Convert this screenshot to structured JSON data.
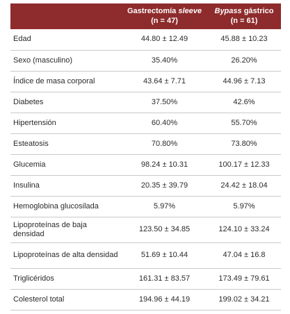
{
  "table": {
    "headers": [
      {
        "text_before": "Gastrectomía ",
        "text_italic": "sleeve",
        "text_after": "",
        "n": "(n = 47)"
      },
      {
        "text_before": "",
        "text_italic": "Bypass",
        "text_after": " gástrico",
        "n": "(n = 61)"
      }
    ],
    "rows": [
      {
        "label": "Edad",
        "sleeve": "44.80 ± 12.49",
        "bypass": "45.88 ± 10.23"
      },
      {
        "label": "Sexo (masculino)",
        "sleeve": "35.40%",
        "bypass": "26.20%"
      },
      {
        "label": "Índice de masa corporal",
        "sleeve": "43.64 ± 7.71",
        "bypass": "44.96 ± 7.13"
      },
      {
        "label": "Diabetes",
        "sleeve": "37.50%",
        "bypass": "42.6%"
      },
      {
        "label": "Hipertensión",
        "sleeve": "60.40%",
        "bypass": "55.70%"
      },
      {
        "label": "Esteatosis",
        "sleeve": "70.80%",
        "bypass": "73.80%"
      },
      {
        "label": "Glucemia",
        "sleeve": "98.24 ± 10.31",
        "bypass": "100.17 ± 12.33"
      },
      {
        "label": "Insulina",
        "sleeve": "20.35 ± 39.79",
        "bypass": "24.42 ± 18.04"
      },
      {
        "label": "Hemoglobina glucosilada",
        "sleeve": "5.97%",
        "bypass": "5.97%"
      },
      {
        "label": "Lipoproteínas de baja densidad",
        "sleeve": "123.50 ± 34.85",
        "bypass": "124.10 ± 33.24"
      },
      {
        "label": "Lipoproteínas de alta densidad",
        "sleeve": "51.69 ± 10.44",
        "bypass": "47.04 ± 16.8"
      },
      {
        "label": "Triglicéridos",
        "sleeve": "161.31 ± 83.57",
        "bypass": "173.49 ± 79.61"
      },
      {
        "label": "Colesterol total",
        "sleeve": "194.96 ± 44.19",
        "bypass": "199.02 ± 34.21"
      }
    ]
  },
  "colors": {
    "header_bg": "#8e2b2c",
    "header_text": "#ffffff",
    "row_rule": "#c9c9c9"
  }
}
